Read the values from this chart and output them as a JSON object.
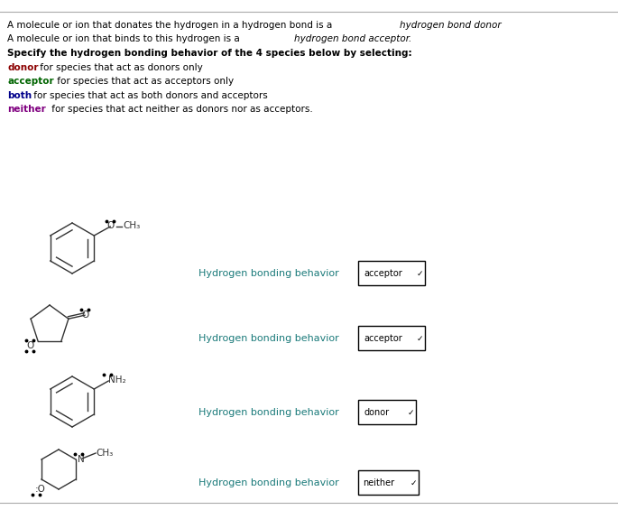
{
  "bg_color": "#ffffff",
  "text_color_normal": "#000000",
  "text_color_italic": "#000000",
  "text_color_teal": "#1a7a7a",
  "text_color_red": "#8B0000",
  "text_color_green": "#006400",
  "text_color_blue": "#00008B",
  "text_color_purple": "#800080",
  "header_lines": [
    {
      "text": "A molecule or ion that donates the hydrogen in a hydrogen bond is a ",
      "bold": false,
      "italic_part": "hydrogen bond donor",
      "color": "#000000"
    },
    {
      "text": "A molecule or ion that binds to this hydrogen is a ",
      "bold": false,
      "italic_part": "hydrogen bond acceptor.",
      "color": "#000000"
    },
    {
      "text": "Specify the hydrogen bonding behavior of the 4 species below by selecting:",
      "bold": true,
      "italic_part": "",
      "color": "#000000"
    },
    {
      "text": "donor",
      "keyword": true,
      "rest": " for species that act as donors only",
      "color": "#8B0000"
    },
    {
      "text": "acceptor",
      "keyword": true,
      "rest": " for species that act as acceptors only",
      "color": "#006400"
    },
    {
      "text": "both",
      "keyword": true,
      "rest": " for species that act as both donors and acceptors",
      "color": "#00008B"
    },
    {
      "text": "neither",
      "keyword": true,
      "rest": " for species that act neither as donors nor as acceptors.",
      "color": "#800080"
    }
  ],
  "molecule_labels": [
    {
      "answer": "acceptor",
      "answer_color": "#1a7a7a"
    },
    {
      "answer": "acceptor",
      "answer_color": "#1a7a7a"
    },
    {
      "answer": "donor",
      "answer_color": "#1a7a7a"
    },
    {
      "answer": "neither",
      "answer_color": "#1a7a7a"
    }
  ]
}
